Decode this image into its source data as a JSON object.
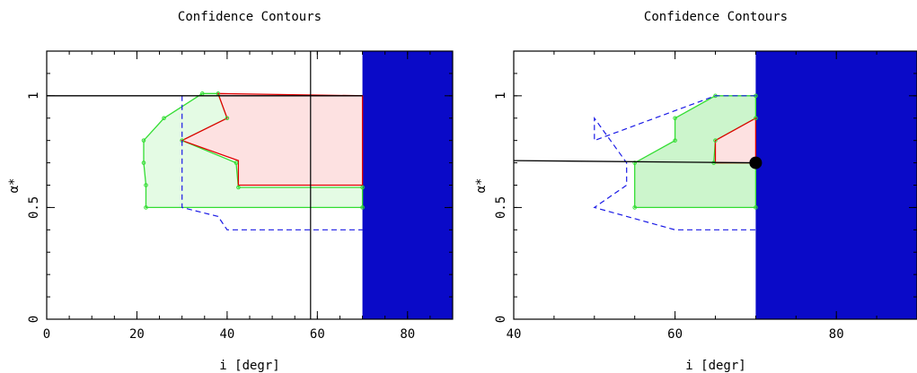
{
  "chart_data": [
    {
      "type": "area",
      "title": "Confidence Contours",
      "xlabel": "i [degr]",
      "ylabel": "α*",
      "xlim": [
        0,
        90
      ],
      "ylim": [
        0,
        1.2
      ],
      "xticks": [
        0,
        20,
        40,
        60,
        80
      ],
      "yticks": [
        0,
        0.5,
        1
      ],
      "ytick_labels": [
        "0",
        "0.5",
        "1"
      ],
      "grid": false,
      "colors": {
        "excluded": "#0a0ac8",
        "red": "#e00000",
        "green": "#33dd33",
        "dashed": "#1a1ae6",
        "pink": "#fde1e1",
        "lightgreen": "#e4fbe4"
      },
      "excluded_region": {
        "x": [
          70,
          90
        ],
        "y": [
          0,
          1.2
        ]
      },
      "red_region": [
        [
          38,
          1.01
        ],
        [
          70,
          1.0
        ],
        [
          70,
          0.6
        ],
        [
          42.5,
          0.6
        ],
        [
          42.5,
          0.71
        ],
        [
          30,
          0.8
        ],
        [
          40,
          0.9
        ]
      ],
      "green_region": [
        [
          22,
          0.5
        ],
        [
          22,
          0.6
        ],
        [
          21.5,
          0.7
        ],
        [
          21.5,
          0.8
        ],
        [
          26,
          0.9
        ],
        [
          34.5,
          1.01
        ],
        [
          38,
          1.01
        ],
        [
          40,
          0.9
        ],
        [
          30,
          0.8
        ],
        [
          42,
          0.7
        ],
        [
          42.5,
          0.59
        ],
        [
          70,
          0.59
        ],
        [
          70,
          0.5
        ]
      ],
      "dashed_contour": [
        [
          30,
          1.0
        ],
        [
          30,
          0.5
        ],
        [
          38,
          0.46
        ],
        [
          40,
          0.4
        ],
        [
          70,
          0.4
        ]
      ],
      "reference_lines": {
        "vertical_x": 58.5,
        "horizontal_y": 1.0
      }
    },
    {
      "type": "area",
      "title": "Confidence Contours",
      "xlabel": "i [degr]",
      "ylabel": "α*",
      "xlim": [
        40,
        90
      ],
      "ylim": [
        0,
        1.2
      ],
      "xticks": [
        40,
        60,
        80
      ],
      "yticks": [
        0,
        0.5,
        1
      ],
      "ytick_labels": [
        "0",
        "0.5",
        "1"
      ],
      "grid": false,
      "colors": {
        "excluded": "#0a0ac8",
        "red": "#e00000",
        "green": "#33dd33",
        "dashed": "#1a1ae6",
        "pink": "#fde1e1",
        "lightgreen": "#ccf5cc"
      },
      "excluded_region": {
        "x": [
          70,
          90
        ],
        "y": [
          0,
          1.2
        ]
      },
      "red_region": [
        [
          65,
          0.8
        ],
        [
          70,
          0.9
        ],
        [
          70,
          0.7
        ],
        [
          65,
          0.7
        ]
      ],
      "green_region": [
        [
          55,
          0.5
        ],
        [
          55,
          0.7
        ],
        [
          60,
          0.8
        ],
        [
          60,
          0.9
        ],
        [
          65,
          1.0
        ],
        [
          70,
          1.0
        ],
        [
          70,
          0.9
        ],
        [
          65,
          0.8
        ],
        [
          64.8,
          0.7
        ],
        [
          70,
          0.7
        ],
        [
          70,
          0.5
        ]
      ],
      "dashed_contour": [
        [
          70,
          1.0
        ],
        [
          65,
          1.0
        ],
        [
          50,
          0.8
        ],
        [
          50,
          0.9
        ],
        [
          54,
          0.7
        ],
        [
          54,
          0.6
        ],
        [
          50,
          0.5
        ],
        [
          60,
          0.4
        ],
        [
          70,
          0.4
        ]
      ],
      "reference_lines": {
        "horizontal_y": 0.71
      },
      "best_fit_point": {
        "x": 70,
        "y": 0.7
      }
    }
  ]
}
